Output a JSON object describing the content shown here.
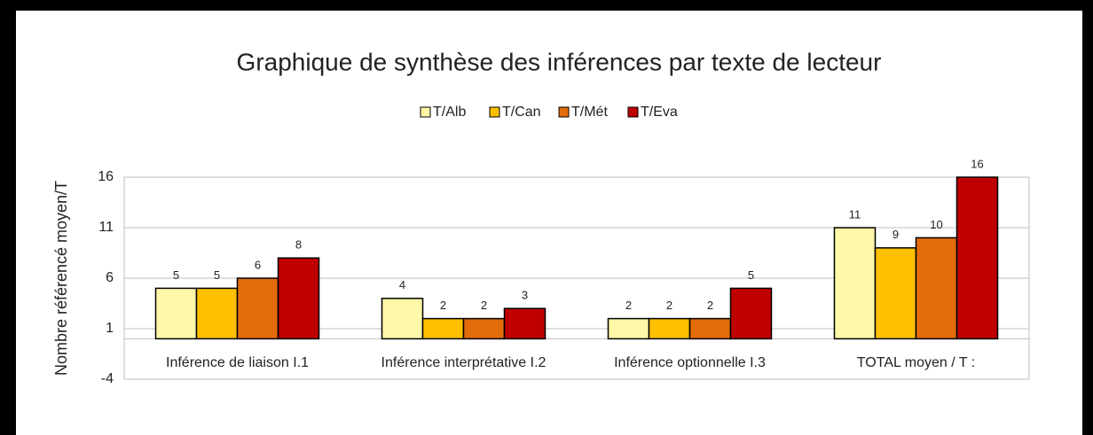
{
  "chart_data": {
    "type": "bar",
    "title": "Graphique de synthèse des inférences par texte de lecteur",
    "y_label": "Nombre référencé moyen/T",
    "categories": [
      "Inférence de liaison  I.1",
      "Inférence interprétative  I.2",
      "Inférence optionnelle  I.3",
      "TOTAL moyen / T :"
    ],
    "series": [
      {
        "name": "T/Alb",
        "color": "#FFF8A8",
        "values": [
          5,
          4,
          2,
          11
        ]
      },
      {
        "name": "T/Can",
        "color": "#FFC000",
        "values": [
          5,
          2,
          2,
          9
        ]
      },
      {
        "name": "T/Mét",
        "color": "#E36C0A",
        "values": [
          6,
          2,
          2,
          10
        ]
      },
      {
        "name": "T/Eva",
        "color": "#C00000",
        "values": [
          8,
          3,
          5,
          16
        ]
      }
    ],
    "ylim": [
      -4,
      16
    ],
    "yticks": [
      -4,
      1,
      6,
      11,
      16
    ],
    "grid": true,
    "legend": "top"
  }
}
